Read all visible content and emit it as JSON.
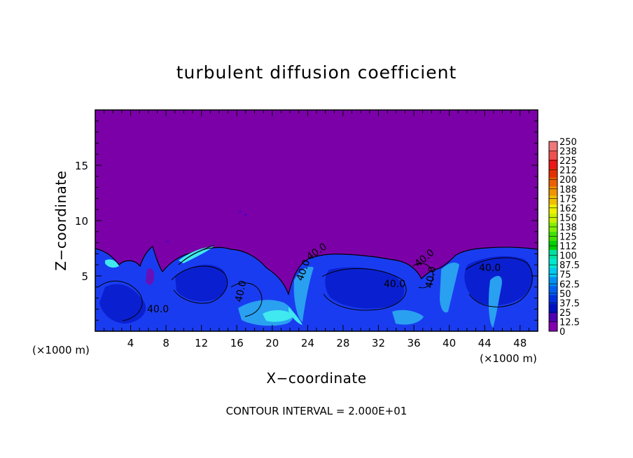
{
  "chart_data": {
    "type": "heatmap",
    "title": "turbulent diffusion coefficient",
    "xlabel": "X−coordinate",
    "ylabel": "Z−coordinate",
    "x_unit_left": "(×1000 m)",
    "x_unit_right": "(×1000 m)",
    "xlim": [
      0,
      50
    ],
    "ylim": [
      0,
      20
    ],
    "x_ticks": [
      "4",
      "8",
      "12",
      "16",
      "20",
      "24",
      "28",
      "32",
      "36",
      "40",
      "44",
      "48"
    ],
    "y_ticks": [
      "5",
      "10",
      "15"
    ],
    "contour_interval_text": "CONTOUR INTERVAL = 2.000E+01",
    "contour_labels": [
      "40.0",
      "40.0",
      "40.0",
      "40.0",
      "40.0",
      "40.0",
      "40.0",
      "40.0"
    ],
    "colorbar": {
      "labels": [
        "250",
        "238",
        "225",
        "212",
        "200",
        "188",
        "175",
        "162",
        "150",
        "138",
        "125",
        "112",
        "100",
        "87.5",
        "75",
        "62.5",
        "50",
        "37.5",
        "25",
        "12.5",
        "0"
      ],
      "colors": [
        "#f07878",
        "#ee5050",
        "#ec1818",
        "#e43000",
        "#ec6000",
        "#f09400",
        "#f0c000",
        "#f0f000",
        "#c8f000",
        "#80f000",
        "#40e000",
        "#00d000",
        "#00e0a0",
        "#00e8d0",
        "#00c8f0",
        "#0090f0",
        "#0060f0",
        "#0030e0",
        "#0010c0",
        "#5000b0",
        "#8000b0"
      ]
    },
    "background_value_color": "#7c00a8",
    "turbulent_layer_top_km_approx": 7
  }
}
